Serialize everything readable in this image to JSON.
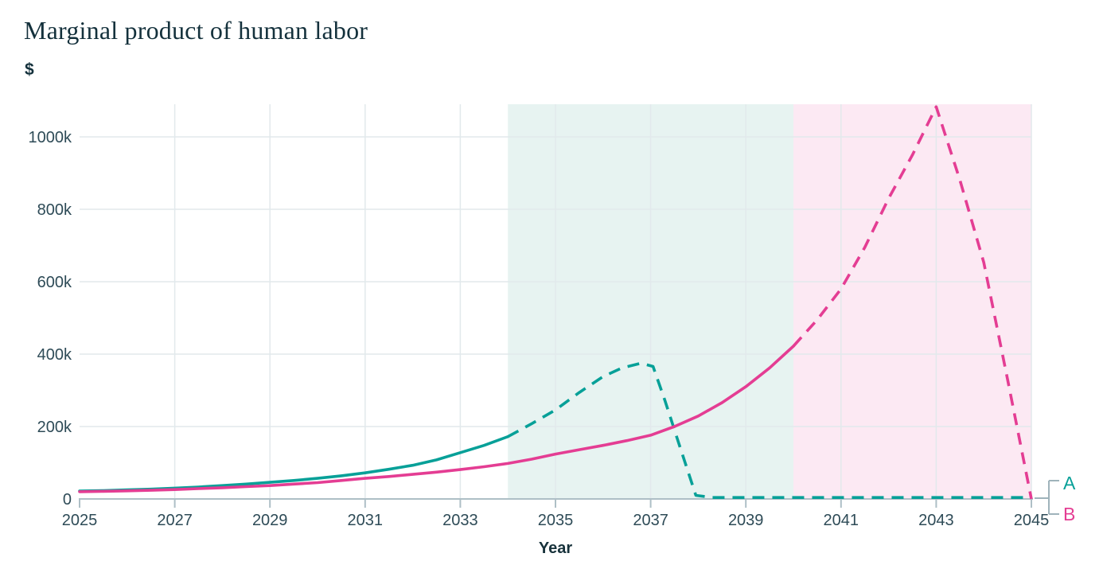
{
  "header": {
    "title": "Marginal product of human labor",
    "y_unit_label": "$"
  },
  "x_axis": {
    "label": "Year"
  },
  "legend": {
    "a_label": "A",
    "b_label": "B"
  },
  "colors": {
    "title_text": "#14313C",
    "tick_text": "#2E4B57",
    "grid_line": "#E2E9EC",
    "axis_line": "#AEBFC6",
    "legend_fork": "#9FB3BB",
    "series_a": "#07A098",
    "series_b": "#E43D93",
    "region_a_fill": "#E7F3F1",
    "region_b_fill": "#FCE9F3"
  },
  "chart_data": {
    "type": "line",
    "title": "Marginal product of human labor",
    "xlabel": "Year",
    "ylabel": "$",
    "xlim": [
      2025,
      2045
    ],
    "ylim_thousands": [
      0,
      1100
    ],
    "grid": true,
    "y_unit": "thousands of dollars",
    "x_ticks": [
      {
        "value": 2025,
        "label": "2025"
      },
      {
        "value": 2027,
        "label": "2027"
      },
      {
        "value": 2029,
        "label": "2029"
      },
      {
        "value": 2031,
        "label": "2031"
      },
      {
        "value": 2033,
        "label": "2033"
      },
      {
        "value": 2035,
        "label": "2035"
      },
      {
        "value": 2037,
        "label": "2037"
      },
      {
        "value": 2039,
        "label": "2039"
      },
      {
        "value": 2041,
        "label": "2041"
      },
      {
        "value": 2043,
        "label": "2043"
      },
      {
        "value": 2045,
        "label": "2045"
      }
    ],
    "y_ticks": [
      {
        "value": 0,
        "label": "0"
      },
      {
        "value": 200,
        "label": "200k"
      },
      {
        "value": 400,
        "label": "400k"
      },
      {
        "value": 600,
        "label": "600k"
      },
      {
        "value": 800,
        "label": "800k"
      },
      {
        "value": 1000,
        "label": "1000k"
      }
    ],
    "regions": [
      {
        "name": "scenario-a-shaded-band",
        "x_start": 2034,
        "x_end": 2040,
        "fill": "#E7F3F1"
      },
      {
        "name": "scenario-b-shaded-band",
        "x_start": 2040,
        "x_end": 2045,
        "fill": "#FCE9F3"
      }
    ],
    "series": [
      {
        "name": "A",
        "color": "#07A098",
        "line_style": "solid-then-dashed",
        "dashed_from_x": 2034,
        "x": [
          2025,
          2025.5,
          2026,
          2026.5,
          2027,
          2027.5,
          2028,
          2028.5,
          2029,
          2029.5,
          2030,
          2030.5,
          2031,
          2031.5,
          2032,
          2032.5,
          2033,
          2033.5,
          2034,
          2034.5,
          2035,
          2035.5,
          2036,
          2036.4,
          2036.8,
          2037.05,
          2037.3,
          2037.6,
          2037.95,
          2038.3,
          2039,
          2040,
          2041,
          2042,
          2043,
          2044,
          2045
        ],
        "y_thousands": [
          22,
          23,
          25,
          27,
          30,
          33,
          37,
          41,
          46,
          51,
          57,
          64,
          72,
          82,
          93,
          108,
          128,
          148,
          172,
          208,
          246,
          294,
          338,
          362,
          375,
          366,
          272,
          150,
          10,
          4,
          4,
          4,
          4,
          4,
          4,
          4,
          4
        ]
      },
      {
        "name": "B",
        "color": "#E43D93",
        "line_style": "solid-then-dashed",
        "dashed_from_x": 2040,
        "x": [
          2025,
          2025.5,
          2026,
          2026.5,
          2027,
          2027.5,
          2028,
          2028.5,
          2029,
          2029.5,
          2030,
          2030.5,
          2031,
          2031.5,
          2032,
          2032.5,
          2033,
          2033.5,
          2034,
          2034.5,
          2035,
          2035.5,
          2036,
          2036.5,
          2037,
          2037.5,
          2038,
          2038.5,
          2039,
          2039.5,
          2040,
          2040.5,
          2041,
          2041.5,
          2042,
          2042.5,
          2043,
          2043.5,
          2044,
          2044.5,
          2045
        ],
        "y_thousands": [
          20,
          21,
          22.5,
          24,
          26,
          28.5,
          31,
          34,
          37,
          41,
          45,
          51,
          57,
          62,
          68,
          74,
          81,
          89,
          98,
          110,
          124,
          136,
          148,
          161,
          176,
          200,
          229,
          266,
          310,
          362,
          422,
          495,
          580,
          695,
          830,
          950,
          1083,
          880,
          653,
          330,
          0
        ]
      }
    ]
  }
}
